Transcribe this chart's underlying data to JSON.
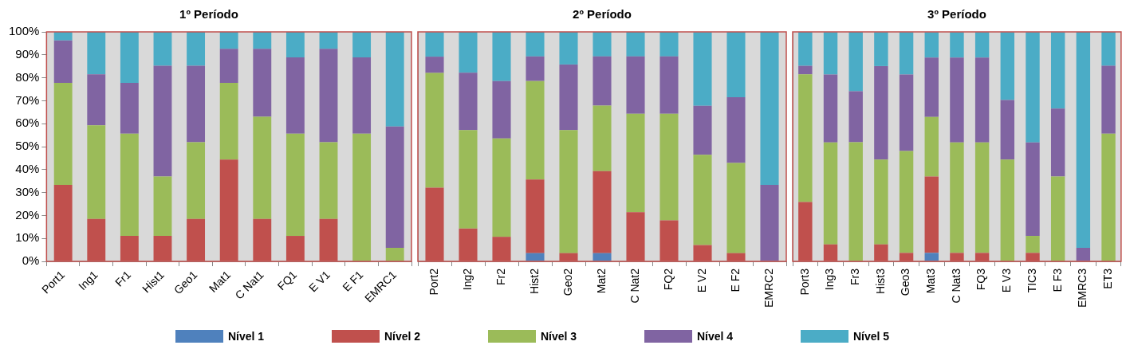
{
  "chart_data": [
    {
      "type": "bar",
      "stacked": true,
      "title": "1º Período",
      "legend": "bottom",
      "categories": [
        "Port1",
        "Ing1",
        "Fr1",
        "Hist1",
        "Geo1",
        "Mat1",
        "C Nat1",
        "FQ1",
        "E V1",
        "E F1",
        "EMRC1"
      ],
      "ylim": [
        0,
        100
      ],
      "yticks": [
        {
          "value": 0,
          "label": "0%"
        },
        {
          "value": 10,
          "label": "10%"
        },
        {
          "value": 20,
          "label": "20%"
        },
        {
          "value": 30,
          "label": "30%"
        },
        {
          "value": 40,
          "label": "40%"
        },
        {
          "value": 50,
          "label": "50%"
        },
        {
          "value": 60,
          "label": "60%"
        },
        {
          "value": 70,
          "label": "70%"
        },
        {
          "value": 80,
          "label": "80%"
        },
        {
          "value": 90,
          "label": "90%"
        },
        {
          "value": 100,
          "label": "100%"
        }
      ],
      "series": [
        {
          "name": "Nível 1",
          "color": "#4f81bd",
          "values": [
            0,
            0,
            0,
            0,
            0,
            0,
            0,
            0,
            0,
            0,
            0
          ]
        },
        {
          "name": "Nível 2",
          "color": "#c0504d",
          "values": [
            33.3,
            18.5,
            11.1,
            11.1,
            18.5,
            44.4,
            18.5,
            11.1,
            18.5,
            0,
            0
          ]
        },
        {
          "name": "Nível 3",
          "color": "#9bbb59",
          "values": [
            44.5,
            40.8,
            44.5,
            25.9,
            33.4,
            33.4,
            44.5,
            44.5,
            33.4,
            55.6,
            5.9
          ]
        },
        {
          "name": "Nível 4",
          "color": "#8064a2",
          "values": [
            18.5,
            22.2,
            22.2,
            48.2,
            33.3,
            14.8,
            29.6,
            33.3,
            40.7,
            33.3,
            52.9
          ]
        },
        {
          "name": "Nível 5",
          "color": "#4bacc6",
          "values": [
            3.7,
            18.5,
            22.2,
            14.8,
            14.8,
            7.4,
            7.4,
            11.1,
            7.4,
            11.1,
            41.2
          ]
        }
      ]
    },
    {
      "type": "bar",
      "stacked": true,
      "title": "2º Período",
      "tick_labels": "x",
      "categories": [
        "Port2",
        "Ing2",
        "Fr2",
        "Hist2",
        "Geo2",
        "Mat2",
        "C Nat2",
        "FQ2",
        "E V2",
        "E F2",
        "EMRC2"
      ],
      "ylim": [
        0,
        100
      ],
      "series": [
        {
          "color": "#4f81bd",
          "values": [
            0,
            0,
            0,
            3.6,
            0,
            3.6,
            0,
            0,
            0,
            0,
            0
          ]
        },
        {
          "color": "#c0504d",
          "values": [
            32.1,
            14.3,
            10.7,
            32.1,
            3.6,
            35.7,
            21.4,
            17.9,
            7.1,
            3.6,
            0
          ]
        },
        {
          "color": "#9bbb59",
          "values": [
            50,
            42.9,
            42.9,
            42.9,
            53.6,
            28.6,
            42.9,
            46.4,
            39.3,
            39.3,
            0
          ]
        },
        {
          "color": "#8064a2",
          "values": [
            7.1,
            25,
            25,
            10.7,
            28.6,
            21.4,
            25,
            25,
            21.4,
            28.6,
            33.3
          ]
        },
        {
          "color": "#4bacc6",
          "values": [
            10.7,
            17.9,
            21.4,
            10.7,
            14.3,
            10.7,
            10.7,
            10.7,
            32.1,
            28.6,
            66.7
          ]
        }
      ]
    },
    {
      "type": "bar",
      "stacked": true,
      "title": "3º Período",
      "tick_labels": "x",
      "categories": [
        "Port3",
        "Ing3",
        "Fr3",
        "Hist3",
        "Geo3",
        "Mat3",
        "C Nat3",
        "FQ3",
        "E V3",
        "TIC3",
        "E F3",
        "EMRC3",
        "ET3"
      ],
      "ylim": [
        0,
        100
      ],
      "series": [
        {
          "color": "#4f81bd",
          "values": [
            0,
            0,
            0,
            0,
            0,
            3.7,
            0,
            0,
            0,
            0,
            0,
            0,
            0
          ]
        },
        {
          "color": "#c0504d",
          "values": [
            25.9,
            7.4,
            0,
            7.4,
            3.7,
            33.3,
            3.7,
            3.7,
            0,
            3.7,
            0,
            0,
            0
          ]
        },
        {
          "color": "#9bbb59",
          "values": [
            55.6,
            44.4,
            51.9,
            37,
            44.4,
            25.9,
            48.1,
            48.1,
            44.4,
            7.4,
            37,
            0,
            55.6
          ]
        },
        {
          "color": "#8064a2",
          "values": [
            3.7,
            29.6,
            22.2,
            40.7,
            33.3,
            25.9,
            37,
            37,
            25.9,
            40.7,
            29.6,
            5.9,
            29.6
          ]
        },
        {
          "color": "#4bacc6",
          "values": [
            14.8,
            18.5,
            25.9,
            14.8,
            18.5,
            11.1,
            11.1,
            11.1,
            29.6,
            48.1,
            33.3,
            94.1,
            14.8
          ]
        }
      ]
    }
  ]
}
